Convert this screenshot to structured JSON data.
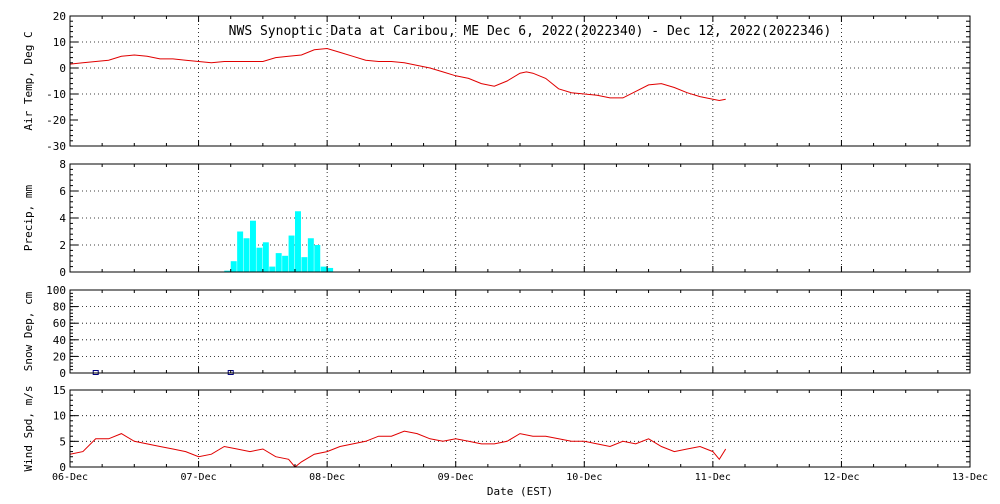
{
  "chart_data": {
    "title": "NWS Synoptic Data at Caribou, ME   Dec  6, 2022(2022340) - Dec 12, 2022(2022346)",
    "xlabel": "Date (EST)",
    "x_tick_labels": [
      "06-Dec",
      "07-Dec",
      "08-Dec",
      "09-Dec",
      "10-Dec",
      "11-Dec",
      "12-Dec",
      "13-Dec"
    ],
    "xlim_days": [
      0,
      7
    ],
    "grid": "dotted vertical at each day",
    "panels": [
      {
        "id": "air-temp",
        "type": "line",
        "ylabel": "Air Temp, Deg C",
        "ylim": [
          -30,
          20
        ],
        "yticks": [
          -30,
          -20,
          -10,
          0,
          10,
          20
        ],
        "hgrid": [
          -10,
          0,
          10
        ],
        "color": "#e00000",
        "series": [
          {
            "x": [
              0,
              0.1,
              0.2,
              0.3,
              0.4,
              0.5,
              0.6,
              0.7,
              0.8,
              0.9,
              1.0,
              1.1,
              1.2,
              1.3,
              1.4,
              1.5,
              1.6,
              1.7,
              1.8,
              1.9,
              2.0,
              2.1,
              2.2,
              2.3,
              2.4,
              2.5,
              2.6,
              2.7,
              2.8,
              2.9,
              3.0,
              3.1,
              3.2,
              3.3,
              3.4,
              3.5,
              3.55,
              3.6,
              3.7,
              3.8,
              3.9,
              4.0,
              4.1,
              4.2,
              4.3,
              4.4,
              4.5,
              4.6,
              4.7,
              4.8,
              4.9,
              5.0,
              5.05,
              5.1
            ],
            "values": [
              1.5,
              2,
              2.5,
              3,
              4.5,
              5,
              4.5,
              3.5,
              3.5,
              3,
              2.5,
              2,
              2.5,
              2.5,
              2.5,
              2.5,
              4,
              4.5,
              5,
              7,
              7.5,
              6,
              4.5,
              3,
              2.5,
              2.5,
              2,
              1,
              0,
              -1.5,
              -3,
              -4,
              -6,
              -7,
              -5,
              -2,
              -1.5,
              -2,
              -4,
              -8,
              -9.5,
              -10,
              -10.5,
              -11.5,
              -11.5,
              -9,
              -6.5,
              -6,
              -7.5,
              -9.5,
              -11,
              -12,
              -12.5,
              -12
            ]
          }
        ]
      },
      {
        "id": "precip",
        "type": "bar",
        "ylabel": "Precip, mm",
        "ylim": [
          0,
          8
        ],
        "yticks": [
          0,
          2,
          4,
          6,
          8
        ],
        "hgrid": [
          2,
          4,
          6
        ],
        "color": "#00ffff",
        "bar_width_days": 0.0417,
        "series": [
          {
            "x": [
              1.2,
              1.25,
              1.3,
              1.35,
              1.4,
              1.45,
              1.5,
              1.55,
              1.6,
              1.65,
              1.7,
              1.75,
              1.8,
              1.85,
              1.9,
              1.95,
              2.0
            ],
            "values": [
              0.1,
              0.8,
              3,
              2.5,
              3.8,
              1.8,
              2.2,
              0.4,
              1.4,
              1.2,
              2.7,
              4.5,
              1.1,
              2.5,
              2,
              0.4,
              0.3
            ]
          }
        ]
      },
      {
        "id": "snow-depth",
        "type": "scatter",
        "ylabel": "Snow Dep, cm",
        "ylim": [
          0,
          100
        ],
        "yticks": [
          0,
          20,
          40,
          60,
          80,
          100
        ],
        "hgrid": [
          20,
          40,
          60,
          80
        ],
        "color": "#000080",
        "series": [
          {
            "x": [
              0.2,
              1.25
            ],
            "values": [
              0,
              0
            ]
          }
        ]
      },
      {
        "id": "wind-speed",
        "type": "line",
        "ylabel": "Wind Spd, m/s",
        "ylim": [
          0,
          15
        ],
        "yticks": [
          0,
          5,
          10,
          15
        ],
        "hgrid": [
          5,
          10
        ],
        "color": "#e00000",
        "series": [
          {
            "x": [
              0,
              0.1,
              0.2,
              0.3,
              0.4,
              0.5,
              0.6,
              0.7,
              0.8,
              0.9,
              1.0,
              1.1,
              1.2,
              1.3,
              1.4,
              1.5,
              1.6,
              1.7,
              1.75,
              1.8,
              1.9,
              2.0,
              2.1,
              2.2,
              2.3,
              2.4,
              2.5,
              2.6,
              2.7,
              2.8,
              2.9,
              3.0,
              3.1,
              3.2,
              3.3,
              3.4,
              3.5,
              3.6,
              3.7,
              3.8,
              3.9,
              4.0,
              4.1,
              4.2,
              4.3,
              4.4,
              4.5,
              4.6,
              4.7,
              4.8,
              4.9,
              5.0,
              5.05,
              5.1
            ],
            "values": [
              2.5,
              3,
              5.5,
              5.5,
              6.5,
              5,
              4.5,
              4,
              3.5,
              3,
              2,
              2.5,
              4,
              3.5,
              3,
              3.5,
              2,
              1.5,
              0,
              1,
              2.5,
              3,
              4,
              4.5,
              5,
              6,
              6,
              7,
              6.5,
              5.5,
              5,
              5.5,
              5,
              4.5,
              4.5,
              5,
              6.5,
              6,
              6,
              5.5,
              5,
              5,
              4.5,
              4,
              5,
              4.5,
              5.5,
              4,
              3,
              3.5,
              4,
              3,
              1.5,
              3.5
            ]
          }
        ]
      }
    ]
  }
}
